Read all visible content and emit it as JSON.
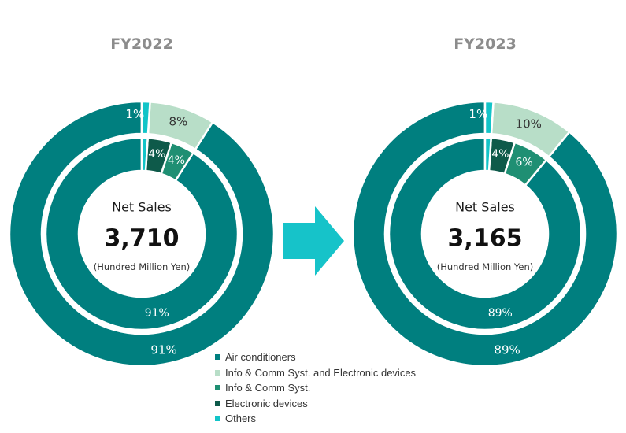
{
  "colors": {
    "air": "#007f7f",
    "info_elec": "#b8dec8",
    "info": "#1f8f73",
    "elec": "#0e5a4a",
    "others": "#12c4c8",
    "arrow": "#16c3c9",
    "title": "#8c8c8c"
  },
  "center_label": "Net Sales",
  "unit_label": "(Hundred Million Yen)",
  "chart_data": [
    {
      "type": "pie",
      "title": "FY2022",
      "total": "3,710",
      "outer": [
        {
          "name": "Air conditioners",
          "value": 91,
          "label": "91%",
          "color_key": "air"
        },
        {
          "name": "Info & Comm Syst. and Electronic devices",
          "value": 8,
          "label": "8%",
          "color_key": "info_elec"
        },
        {
          "name": "Others",
          "value": 1,
          "label": "1%",
          "color_key": "others"
        }
      ],
      "inner": [
        {
          "name": "Air conditioners",
          "value": 91,
          "label": "91%",
          "color_key": "air"
        },
        {
          "name": "Info & Comm Syst.",
          "value": 4,
          "label": "4%",
          "color_key": "info"
        },
        {
          "name": "Electronic devices",
          "value": 4,
          "label": "4%",
          "color_key": "elec"
        },
        {
          "name": "Others",
          "value": 1,
          "label": "",
          "color_key": "others"
        }
      ]
    },
    {
      "type": "pie",
      "title": "FY2023",
      "total": "3,165",
      "outer": [
        {
          "name": "Air conditioners",
          "value": 89,
          "label": "89%",
          "color_key": "air"
        },
        {
          "name": "Info & Comm Syst. and Electronic devices",
          "value": 10,
          "label": "10%",
          "color_key": "info_elec"
        },
        {
          "name": "Others",
          "value": 1,
          "label": "1%",
          "color_key": "others"
        }
      ],
      "inner": [
        {
          "name": "Air conditioners",
          "value": 89,
          "label": "89%",
          "color_key": "air"
        },
        {
          "name": "Info & Comm Syst.",
          "value": 6,
          "label": "6%",
          "color_key": "info"
        },
        {
          "name": "Electronic devices",
          "value": 4,
          "label": "4%",
          "color_key": "elec"
        },
        {
          "name": "Others",
          "value": 1,
          "label": "",
          "color_key": "others"
        }
      ]
    }
  ],
  "legend": [
    {
      "label": "Air conditioners",
      "color_key": "air"
    },
    {
      "label": "Info & Comm Syst. and Electronic devices",
      "color_key": "info_elec"
    },
    {
      "label": "Info & Comm Syst.",
      "color_key": "info"
    },
    {
      "label": "Electronic devices",
      "color_key": "elec"
    },
    {
      "label": "Others",
      "color_key": "others"
    }
  ]
}
